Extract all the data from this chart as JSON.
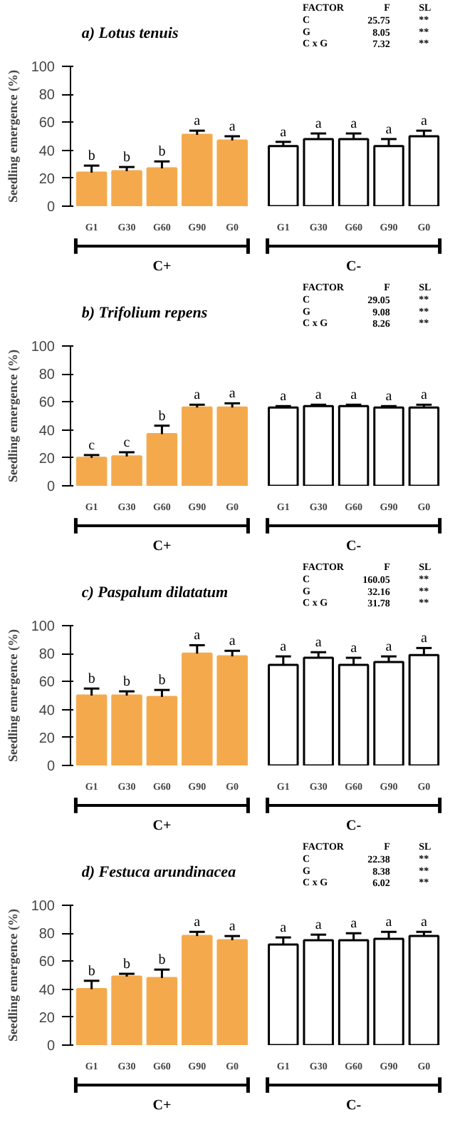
{
  "chart_data": [
    {
      "type": "bar",
      "title": "a) Lotus tenuis",
      "ylabel": "Seedling emergence (%)",
      "categories": [
        "G1",
        "G30",
        "G60",
        "G90",
        "G0",
        "G1",
        "G30",
        "G60",
        "G90",
        "G0"
      ],
      "values": [
        24,
        25,
        27,
        51,
        47,
        43,
        48,
        48,
        43,
        50
      ],
      "errors": [
        [
          24,
          29
        ],
        [
          25,
          28
        ],
        [
          27,
          32
        ],
        [
          51,
          54
        ],
        [
          47,
          50
        ],
        [
          43,
          46
        ],
        [
          48,
          52
        ],
        [
          48,
          52
        ],
        [
          43,
          48
        ],
        [
          50,
          54
        ]
      ],
      "value_labels": [
        "b",
        "b",
        "b",
        "a",
        "a",
        "a",
        "a",
        "a",
        "a",
        "a"
      ],
      "colors": [
        "#f4aa4c",
        "#f4aa4c",
        "#f4aa4c",
        "#f4aa4c",
        "#f4aa4c",
        "#ffffff",
        "#ffffff",
        "#ffffff",
        "#ffffff",
        "#ffffff"
      ],
      "ylim": [
        0,
        100
      ],
      "yticks": [
        0,
        20,
        40,
        60,
        80,
        100
      ],
      "grid": false,
      "annotations": [
        "FACTOR       F     SL",
        "C        25.75     **",
        "G         8.05     **",
        "C x G     7.32     **",
        "C+",
        "C-"
      ]
    },
    {
      "type": "bar",
      "title": "b) Trifolium repens",
      "ylabel": "Seedling emergence (%)",
      "categories": [
        "G1",
        "G30",
        "G60",
        "G90",
        "G0",
        "G1",
        "G30",
        "G60",
        "G90",
        "G0"
      ],
      "values": [
        20,
        21,
        37,
        56,
        56,
        56,
        57,
        57,
        56,
        56
      ],
      "errors": [
        [
          20,
          22
        ],
        [
          21,
          24
        ],
        [
          37,
          43
        ],
        [
          56,
          58
        ],
        [
          56,
          59
        ],
        [
          56,
          57
        ],
        [
          57,
          58
        ],
        [
          57,
          58
        ],
        [
          56,
          57
        ],
        [
          56,
          58
        ]
      ],
      "value_labels": [
        "c",
        "c",
        "b",
        "a",
        "a",
        "a",
        "a",
        "a",
        "a",
        "a"
      ],
      "colors": [
        "#f4aa4c",
        "#f4aa4c",
        "#f4aa4c",
        "#f4aa4c",
        "#f4aa4c",
        "#ffffff",
        "#ffffff",
        "#ffffff",
        "#ffffff",
        "#ffffff"
      ],
      "ylim": [
        0,
        100
      ],
      "yticks": [
        0,
        20,
        40,
        60,
        80,
        100
      ],
      "grid": false,
      "annotations": [
        "FACTOR       F     SL",
        "C        29.05     **",
        "G         9.08     **",
        "C x G     8.26     **",
        "C+",
        "C-"
      ]
    },
    {
      "type": "bar",
      "title": "c) Paspalum dilatatum",
      "ylabel": "Seedling emergence (%)",
      "categories": [
        "G1",
        "G30",
        "G60",
        "G90",
        "G0",
        "G1",
        "G30",
        "G60",
        "G90",
        "G0"
      ],
      "values": [
        50,
        50,
        49,
        80,
        78,
        72,
        77,
        72,
        74,
        79
      ],
      "errors": [
        [
          50,
          55
        ],
        [
          50,
          53
        ],
        [
          49,
          54
        ],
        [
          80,
          86
        ],
        [
          78,
          82
        ],
        [
          72,
          78
        ],
        [
          77,
          81
        ],
        [
          72,
          77
        ],
        [
          74,
          78
        ],
        [
          79,
          84
        ]
      ],
      "value_labels": [
        "b",
        "b",
        "b",
        "a",
        "a",
        "a",
        "a",
        "a",
        "a",
        "a"
      ],
      "colors": [
        "#f4aa4c",
        "#f4aa4c",
        "#f4aa4c",
        "#f4aa4c",
        "#f4aa4c",
        "#ffffff",
        "#ffffff",
        "#ffffff",
        "#ffffff",
        "#ffffff"
      ],
      "ylim": [
        0,
        100
      ],
      "yticks": [
        0,
        20,
        40,
        60,
        80,
        100
      ],
      "grid": false,
      "annotations": [
        "FACTOR       F     SL",
        "C       160.05     **",
        "G        32.16     **",
        "C x G    31.78     **",
        "C+",
        "C-"
      ]
    },
    {
      "type": "bar",
      "title": "d) Festuca arundinacea",
      "ylabel": "Seedling emergence (%)",
      "categories": [
        "G1",
        "G30",
        "G60",
        "G90",
        "G0",
        "G1",
        "G30",
        "G60",
        "G90",
        "G0"
      ],
      "values": [
        40,
        49,
        48,
        78,
        75,
        72,
        75,
        75,
        76,
        78
      ],
      "errors": [
        [
          40,
          46
        ],
        [
          49,
          51
        ],
        [
          48,
          54
        ],
        [
          78,
          81
        ],
        [
          75,
          78
        ],
        [
          72,
          77
        ],
        [
          75,
          79
        ],
        [
          75,
          80
        ],
        [
          76,
          81
        ],
        [
          78,
          81
        ]
      ],
      "value_labels": [
        "b",
        "b",
        "b",
        "a",
        "a",
        "a",
        "a",
        "a",
        "a",
        "a"
      ],
      "colors": [
        "#f4aa4c",
        "#f4aa4c",
        "#f4aa4c",
        "#f4aa4c",
        "#f4aa4c",
        "#ffffff",
        "#ffffff",
        "#ffffff",
        "#ffffff",
        "#ffffff"
      ],
      "ylim": [
        0,
        100
      ],
      "yticks": [
        0,
        20,
        40,
        60,
        80,
        100
      ],
      "grid": false,
      "annotations": [
        "FACTOR       F     SL",
        "C        22.38     **",
        "G         8.38     **",
        "C x G     6.02     **",
        "C+",
        "C-"
      ]
    }
  ]
}
